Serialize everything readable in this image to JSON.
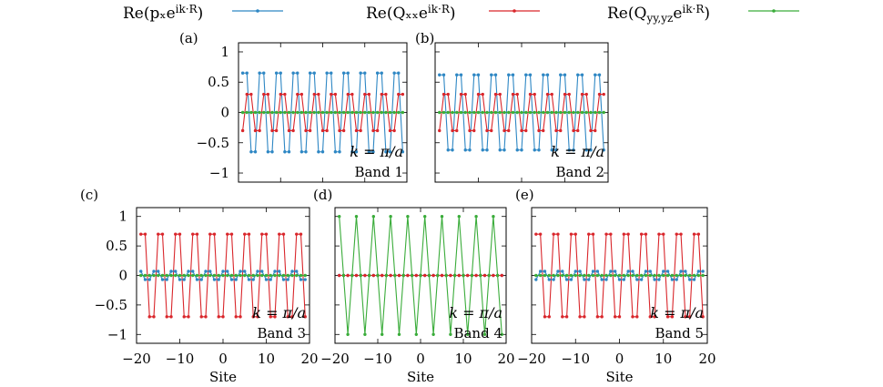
{
  "colors": {
    "px": "#2e87c4",
    "qxx": "#d9262b",
    "qyy": "#3aac3a"
  },
  "legend": [
    {
      "key": "px",
      "label": "Re(pₓe^{ik·R})"
    },
    {
      "key": "qxx",
      "label": "Re(Qₓₓe^{ik·R})"
    },
    {
      "key": "qyy",
      "label": "Re(Q_{yy,yz}e^{ik·R})"
    }
  ],
  "chart_data": [
    {
      "type": "line",
      "panel": "(a)",
      "band": "Band 1",
      "k_label": "k = π/a",
      "xlim": [
        -20,
        20
      ],
      "ylim": [
        -1.15,
        1.15
      ],
      "yticks": [
        -1,
        -0.5,
        0,
        0.5,
        1
      ],
      "ytick_labels": [
        "−1",
        "−0.5",
        "0",
        "0.5",
        "1"
      ],
      "xticks": [
        -20,
        -10,
        0,
        10,
        20
      ],
      "xtick_labels": [],
      "xlabel": "",
      "x_range": [
        -19,
        19
      ],
      "series": [
        {
          "name": "Re(pₓe^{ik·R})",
          "key": "px",
          "pattern": [
            0.65,
            0.65,
            -0.65,
            -0.65
          ]
        },
        {
          "name": "Re(Qₓₓe^{ik·R})",
          "key": "qxx",
          "pattern": [
            -0.3,
            0.3,
            0.3,
            -0.3
          ]
        },
        {
          "name": "Re(Q_{yy,yz}e^{ik·R})",
          "key": "qyy",
          "pattern": [
            0.0
          ]
        }
      ]
    },
    {
      "type": "line",
      "panel": "(b)",
      "band": "Band 2",
      "k_label": "k = π/a",
      "xlim": [
        -20,
        20
      ],
      "ylim": [
        -1.15,
        1.15
      ],
      "yticks": [
        -1,
        -0.5,
        0,
        0.5,
        1
      ],
      "ytick_labels": [],
      "xticks": [
        -20,
        -10,
        0,
        10,
        20
      ],
      "xtick_labels": [],
      "xlabel": "",
      "x_range": [
        -19,
        19
      ],
      "series": [
        {
          "name": "Re(pₓe^{ik·R})",
          "key": "px",
          "pattern": [
            0.62,
            0.62,
            -0.62,
            -0.62
          ]
        },
        {
          "name": "Re(Qₓₓe^{ik·R})",
          "key": "qxx",
          "pattern": [
            -0.3,
            0.3,
            0.3,
            -0.3
          ]
        },
        {
          "name": "Re(Q_{yy,yz}e^{ik·R})",
          "key": "qyy",
          "pattern": [
            0.0
          ]
        }
      ]
    },
    {
      "type": "line",
      "panel": "(c)",
      "band": "Band 3",
      "k_label": "k = π/a",
      "xlim": [
        -20,
        20
      ],
      "ylim": [
        -1.15,
        1.15
      ],
      "yticks": [
        -1,
        -0.5,
        0,
        0.5,
        1
      ],
      "ytick_labels": [
        "−1",
        "−0.5",
        "0",
        "0.5",
        "1"
      ],
      "xticks": [
        -20,
        -10,
        0,
        10,
        20
      ],
      "xtick_labels": [
        "−20",
        "−10",
        "0",
        "10",
        "20"
      ],
      "xlabel": "Site",
      "x_range": [
        -19,
        19
      ],
      "series": [
        {
          "name": "Re(Qₓₓe^{ik·R})",
          "key": "qxx",
          "pattern": [
            0.7,
            0.7,
            -0.7,
            -0.7
          ]
        },
        {
          "name": "Re(pₓe^{ik·R})",
          "key": "px",
          "pattern": [
            0.07,
            -0.07,
            -0.07,
            0.07
          ]
        },
        {
          "name": "Re(Q_{yy,yz}e^{ik·R})",
          "key": "qyy",
          "pattern": [
            0.0
          ]
        }
      ]
    },
    {
      "type": "line",
      "panel": "(d)",
      "band": "Band 4",
      "k_label": "k = π/a",
      "xlim": [
        -20,
        20
      ],
      "ylim": [
        -1.15,
        1.15
      ],
      "yticks": [
        -1,
        -0.5,
        0,
        0.5,
        1
      ],
      "ytick_labels": [],
      "xticks": [
        -20,
        -10,
        0,
        10,
        20
      ],
      "xtick_labels": [
        "−20",
        "−10",
        "0",
        "10",
        "20"
      ],
      "xlabel": "Site",
      "x_range": [
        -19,
        19
      ],
      "series": [
        {
          "name": "Re(pₓe^{ik·R})",
          "key": "px",
          "pattern": [
            0.0
          ]
        },
        {
          "name": "Re(Qₓₓe^{ik·R})",
          "key": "qxx",
          "pattern": [
            0.0
          ]
        },
        {
          "name": "Re(Q_{yy,yz}e^{ik·R})",
          "key": "qyy",
          "pattern": [
            1.0,
            0.0,
            -1.0,
            0.0
          ]
        }
      ]
    },
    {
      "type": "line",
      "panel": "(e)",
      "band": "Band 5",
      "k_label": "k = π/a",
      "xlim": [
        -20,
        20
      ],
      "ylim": [
        -1.15,
        1.15
      ],
      "yticks": [
        -1,
        -0.5,
        0,
        0.5,
        1
      ],
      "ytick_labels": [],
      "xticks": [
        -20,
        -10,
        0,
        10,
        20
      ],
      "xtick_labels": [
        "−20",
        "−10",
        "0",
        "10",
        "20"
      ],
      "xlabel": "Site",
      "x_range": [
        -19,
        19
      ],
      "series": [
        {
          "name": "Re(Qₓₓe^{ik·R})",
          "key": "qxx",
          "pattern": [
            0.7,
            0.7,
            -0.7,
            -0.7
          ]
        },
        {
          "name": "Re(pₓe^{ik·R})",
          "key": "px",
          "pattern": [
            -0.07,
            0.07,
            0.07,
            -0.07
          ]
        },
        {
          "name": "Re(Q_{yy,yz}e^{ik·R})",
          "key": "qyy",
          "pattern": [
            0.0
          ]
        }
      ]
    }
  ]
}
